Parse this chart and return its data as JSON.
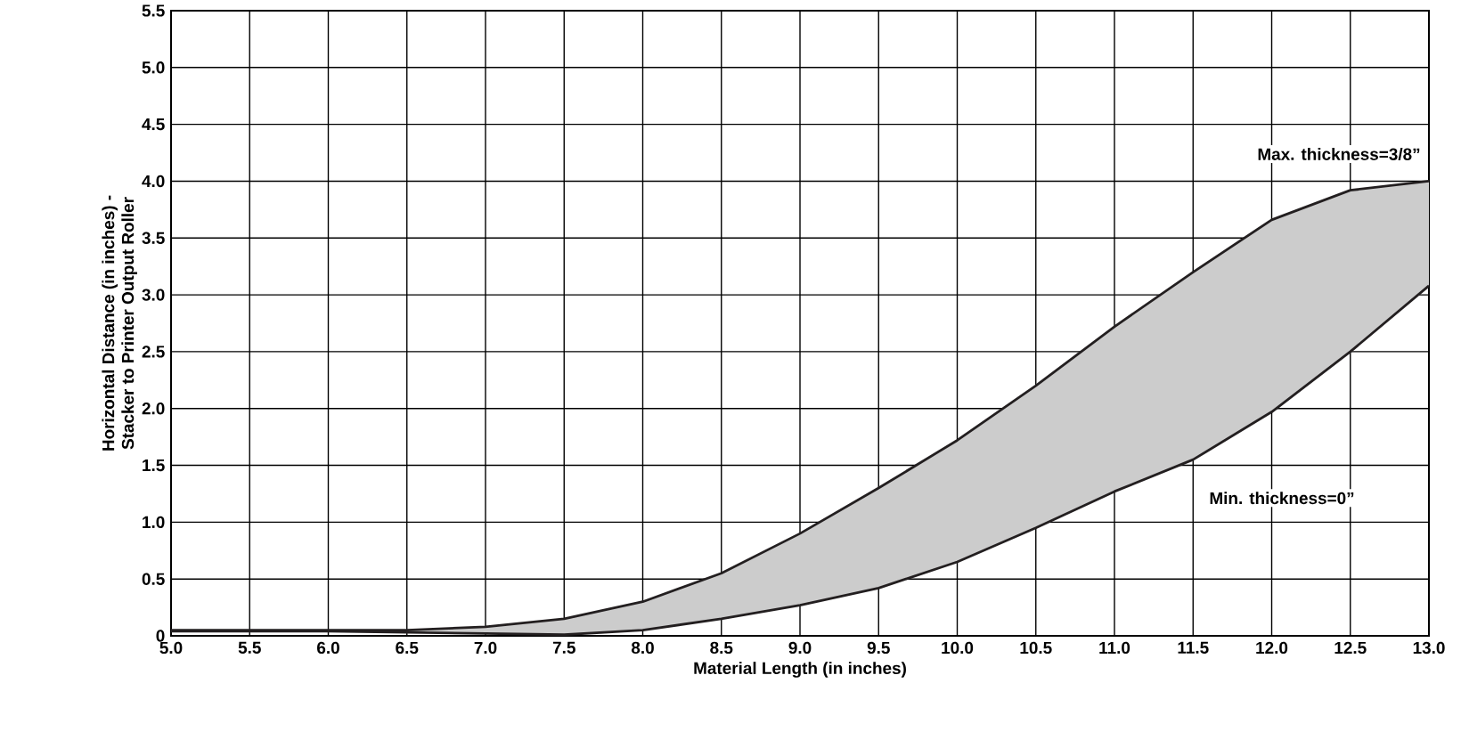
{
  "chart_data": {
    "type": "line",
    "xlabel": "Material Length (in inches)",
    "ylabel": "Horizontal Distance (in inches) -\nStacker to Printer Output Roller",
    "x": [
      5.0,
      5.5,
      6.0,
      6.5,
      7.0,
      7.5,
      8.0,
      8.5,
      9.0,
      9.5,
      10.0,
      10.5,
      11.0,
      11.5,
      12.0,
      12.5,
      13.0
    ],
    "series": [
      {
        "color": "#231f20",
        "values": [
          0.05,
          0.05,
          0.05,
          0.05,
          0.08,
          0.15,
          0.3,
          0.55,
          0.9,
          1.3,
          1.72,
          2.2,
          2.72,
          3.2,
          3.66,
          3.92,
          4.0
        ],
        "lower": [
          0.04,
          0.04,
          0.04,
          0.03,
          0.02,
          0.01,
          0.05,
          0.15,
          0.27,
          0.42,
          0.65,
          0.95,
          1.27,
          1.55,
          1.97,
          2.5,
          3.08
        ],
        "upper": [
          0.05,
          0.05,
          0.05,
          0.05,
          0.08,
          0.15,
          0.3,
          0.55,
          0.9,
          1.3,
          1.72,
          2.2,
          2.72,
          3.2,
          3.66,
          3.92,
          4.0
        ]
      },
      {
        "color": "#231f20",
        "values": [
          0.04,
          0.04,
          0.04,
          0.03,
          0.02,
          0.01,
          0.05,
          0.15,
          0.27,
          0.42,
          0.65,
          0.95,
          1.27,
          1.55,
          1.97,
          2.5,
          3.08
        ]
      }
    ],
    "annotations": [
      "Max. thickness=3/8”",
      "Min. thickness=0”"
    ],
    "xlim": [
      5.0,
      13.0
    ],
    "ylim": [
      0,
      5.5
    ],
    "xticks": [
      {
        "value": 5,
        "label": "5.0"
      },
      5.5,
      {
        "value": 6,
        "label": "6.0"
      },
      6.5,
      {
        "value": 7,
        "label": "7.0"
      },
      7.5,
      {
        "value": 8,
        "label": "8.0"
      },
      8.5,
      {
        "value": 9,
        "label": "9.0"
      },
      9.5,
      {
        "value": 10,
        "label": "10.0"
      },
      10.5,
      {
        "value": 11,
        "label": "11.0"
      },
      11.5,
      {
        "value": 12,
        "label": "12.0"
      },
      12.5,
      {
        "value": 13,
        "label": "13.0"
      }
    ],
    "yticks": [
      0,
      0.5,
      {
        "value": 1,
        "label": "1.0"
      },
      1.5,
      {
        "value": 2,
        "label": "2.0"
      },
      2.5,
      {
        "value": 3,
        "label": "3.0"
      },
      3.5,
      {
        "value": 4,
        "label": "4.0"
      },
      4.5,
      {
        "value": 5,
        "label": "5.0"
      },
      5.5
    ],
    "grid": true,
    "marker": "none",
    "line_style": "solid"
  }
}
